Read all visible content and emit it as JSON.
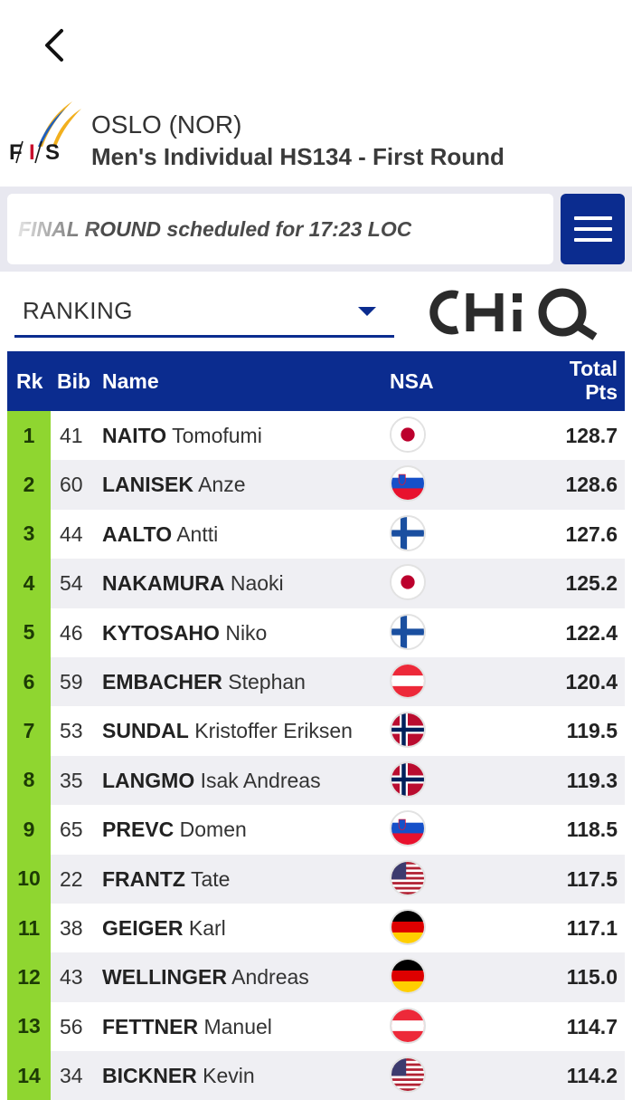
{
  "event": {
    "title": "OSLO (NOR)",
    "subtitle": "Men's Individual HS134 - First Round"
  },
  "ticker": {
    "text": "FINAL ROUND scheduled for 17:23 LOC"
  },
  "ranking_select": {
    "selected": "RANKING"
  },
  "sponsor": "CHiQ",
  "table": {
    "headers": {
      "rank": "Rk",
      "bib": "Bib",
      "name": "Name",
      "nsa": "NSA",
      "total_line1": "Total",
      "total_line2": "Pts"
    },
    "rows": [
      {
        "rank": "1",
        "bib": "41",
        "last": "NAITO",
        "first": "Tomofumi",
        "nsa": "JPN",
        "pts": "128.7"
      },
      {
        "rank": "2",
        "bib": "60",
        "last": "LANISEK",
        "first": "Anze",
        "nsa": "SLO",
        "pts": "128.6"
      },
      {
        "rank": "3",
        "bib": "44",
        "last": "AALTO",
        "first": "Antti",
        "nsa": "FIN",
        "pts": "127.6"
      },
      {
        "rank": "4",
        "bib": "54",
        "last": "NAKAMURA",
        "first": "Naoki",
        "nsa": "JPN",
        "pts": "125.2"
      },
      {
        "rank": "5",
        "bib": "46",
        "last": "KYTOSAHO",
        "first": "Niko",
        "nsa": "FIN",
        "pts": "122.4"
      },
      {
        "rank": "6",
        "bib": "59",
        "last": "EMBACHER",
        "first": "Stephan",
        "nsa": "AUT",
        "pts": "120.4"
      },
      {
        "rank": "7",
        "bib": "53",
        "last": "SUNDAL",
        "first": "Kristoffer Eriksen",
        "nsa": "NOR",
        "pts": "119.5"
      },
      {
        "rank": "8",
        "bib": "35",
        "last": "LANGMO",
        "first": "Isak Andreas",
        "nsa": "NOR",
        "pts": "119.3"
      },
      {
        "rank": "9",
        "bib": "65",
        "last": "PREVC",
        "first": "Domen",
        "nsa": "SLO",
        "pts": "118.5"
      },
      {
        "rank": "10",
        "bib": "22",
        "last": "FRANTZ",
        "first": "Tate",
        "nsa": "USA",
        "pts": "117.5"
      },
      {
        "rank": "11",
        "bib": "38",
        "last": "GEIGER",
        "first": "Karl",
        "nsa": "GER",
        "pts": "117.1"
      },
      {
        "rank": "12",
        "bib": "43",
        "last": "WELLINGER",
        "first": "Andreas",
        "nsa": "GER",
        "pts": "115.0"
      },
      {
        "rank": "13",
        "bib": "56",
        "last": "FETTNER",
        "first": "Manuel",
        "nsa": "AUT",
        "pts": "114.7"
      },
      {
        "rank": "14",
        "bib": "34",
        "last": "BICKNER",
        "first": "Kevin",
        "nsa": "USA",
        "pts": "114.2"
      }
    ]
  },
  "colors": {
    "header_blue": "#0b2c8f",
    "rank_green": "#8fd630"
  }
}
